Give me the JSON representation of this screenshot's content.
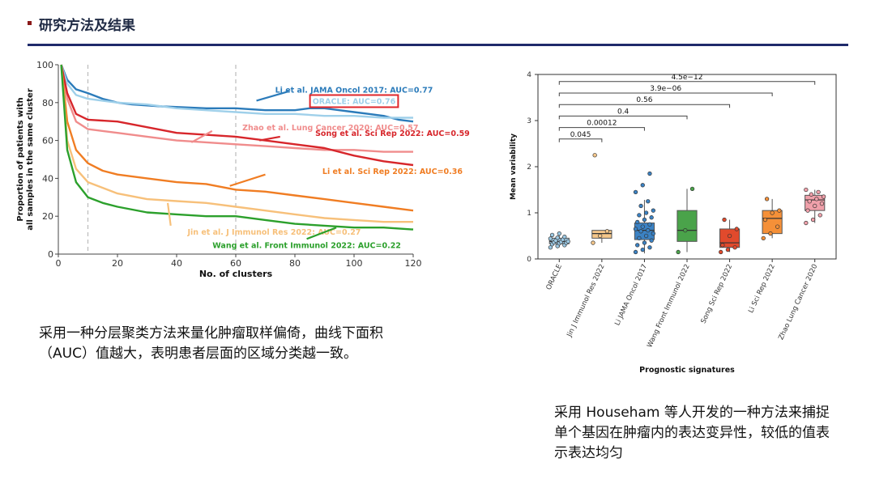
{
  "header": {
    "title": "研究方法及结果"
  },
  "captions": {
    "left": "采用一种分层聚类方法来量化肿瘤取样偏倚，曲线下面积（AUC）值越大，表明患者层面的区域分类越一致。",
    "right": "采用 Househam 等人开发的一种方法来捕捉单个基因在肿瘤内的表达变异性，较低的值表示表达均匀"
  },
  "chart_data": [
    {
      "type": "line",
      "xlabel": "No. of clusters",
      "ylabel": "Proportion of patients with all samples in the same cluster",
      "xlim": [
        0,
        120
      ],
      "ylim": [
        0,
        100
      ],
      "x_ticks": [
        "0",
        "20",
        "40",
        "60",
        "80",
        "100",
        "120"
      ],
      "y_ticks": [
        "0",
        "20",
        "40",
        "60",
        "80",
        "100"
      ],
      "vlines": [
        10,
        60
      ],
      "series": [
        {
          "name": "Li et al. JAMA Oncol 2017: AUC=0.77",
          "color": "#2b7bba",
          "points": [
            [
              1,
              100
            ],
            [
              3,
              92
            ],
            [
              6,
              87
            ],
            [
              10,
              85
            ],
            [
              15,
              82
            ],
            [
              20,
              80
            ],
            [
              25,
              79
            ],
            [
              35,
              78
            ],
            [
              50,
              77
            ],
            [
              60,
              77
            ],
            [
              70,
              76
            ],
            [
              80,
              76
            ],
            [
              85,
              77
            ],
            [
              90,
              77
            ],
            [
              95,
              76
            ],
            [
              100,
              75
            ],
            [
              105,
              74
            ],
            [
              110,
              73
            ],
            [
              115,
              71
            ],
            [
              120,
              70
            ]
          ]
        },
        {
          "name": "ORACLE: AUC=0.76",
          "color": "#9fd0ea",
          "points": [
            [
              1,
              100
            ],
            [
              3,
              90
            ],
            [
              6,
              84
            ],
            [
              10,
              82
            ],
            [
              20,
              80
            ],
            [
              30,
              79
            ],
            [
              40,
              77
            ],
            [
              50,
              76
            ],
            [
              60,
              75
            ],
            [
              70,
              74
            ],
            [
              80,
              74
            ],
            [
              90,
              73
            ],
            [
              100,
              73
            ],
            [
              110,
              72
            ],
            [
              120,
              72
            ]
          ]
        },
        {
          "name": "Zhao et al. Lung Cancer 2020: AUC=0.57",
          "color": "#f08c8c",
          "points": [
            [
              1,
              100
            ],
            [
              3,
              82
            ],
            [
              6,
              70
            ],
            [
              10,
              66
            ],
            [
              20,
              64
            ],
            [
              30,
              62
            ],
            [
              40,
              60
            ],
            [
              50,
              59
            ],
            [
              60,
              58
            ],
            [
              70,
              57
            ],
            [
              80,
              56
            ],
            [
              90,
              55
            ],
            [
              100,
              55
            ],
            [
              110,
              54
            ],
            [
              120,
              54
            ]
          ]
        },
        {
          "name": "Song et al. Sci Rep 2022: AUC=0.59",
          "color": "#d7262b",
          "points": [
            [
              1,
              100
            ],
            [
              3,
              85
            ],
            [
              6,
              74
            ],
            [
              10,
              71
            ],
            [
              20,
              70
            ],
            [
              30,
              67
            ],
            [
              40,
              64
            ],
            [
              50,
              63
            ],
            [
              60,
              62
            ],
            [
              70,
              60
            ],
            [
              80,
              58
            ],
            [
              90,
              56
            ],
            [
              100,
              52
            ],
            [
              110,
              49
            ],
            [
              120,
              47
            ]
          ]
        },
        {
          "name": "Li et al. Sci Rep 2022: AUC=0.36",
          "color": "#f07d23",
          "points": [
            [
              1,
              100
            ],
            [
              3,
              70
            ],
            [
              6,
              55
            ],
            [
              10,
              48
            ],
            [
              15,
              44
            ],
            [
              20,
              42
            ],
            [
              30,
              40
            ],
            [
              40,
              38
            ],
            [
              50,
              37
            ],
            [
              60,
              34
            ],
            [
              70,
              33
            ],
            [
              80,
              31
            ],
            [
              90,
              29
            ],
            [
              100,
              27
            ],
            [
              110,
              25
            ],
            [
              120,
              23
            ]
          ]
        },
        {
          "name": "Jin et al. J Immunol Res 2022: AUC=0.27",
          "color": "#f7c07a",
          "points": [
            [
              1,
              100
            ],
            [
              3,
              60
            ],
            [
              6,
              45
            ],
            [
              10,
              38
            ],
            [
              15,
              35
            ],
            [
              20,
              32
            ],
            [
              30,
              29
            ],
            [
              40,
              28
            ],
            [
              50,
              27
            ],
            [
              60,
              25
            ],
            [
              70,
              23
            ],
            [
              80,
              21
            ],
            [
              90,
              19
            ],
            [
              100,
              18
            ],
            [
              110,
              17
            ],
            [
              120,
              17
            ]
          ]
        },
        {
          "name": "Wang et al. Front Immunol 2022: AUC=0.22",
          "color": "#2ca02c",
          "points": [
            [
              1,
              100
            ],
            [
              3,
              55
            ],
            [
              6,
              38
            ],
            [
              10,
              30
            ],
            [
              15,
              27
            ],
            [
              20,
              25
            ],
            [
              30,
              22
            ],
            [
              40,
              21
            ],
            [
              50,
              20
            ],
            [
              60,
              20
            ],
            [
              70,
              18
            ],
            [
              80,
              16
            ],
            [
              90,
              15
            ],
            [
              100,
              14
            ],
            [
              110,
              14
            ],
            [
              120,
              13
            ]
          ]
        }
      ],
      "annotations": [
        {
          "text": "Li et al. JAMA Oncol 2017: AUC=0.77",
          "color": "#2b7bba",
          "x": 100,
          "y": 87,
          "ax": 67,
          "ay": 81,
          "bx": 78,
          "by": 86
        },
        {
          "text": "ORACLE: AUC=0.76",
          "color": "#9fd0ea",
          "x": 100,
          "y": 81,
          "boxed": true
        },
        {
          "text": "Zhao et al. Lung Cancer 2020: AUC=0.57",
          "color": "#f08c8c",
          "x": 92,
          "y": 67,
          "ax": 45,
          "ay": 59,
          "bx": 52,
          "by": 65
        },
        {
          "text": "Song et al. Sci Rep 2022: AUC=0.59",
          "color": "#d7262b",
          "x": 113,
          "y": 64,
          "ax": 68,
          "ay": 60,
          "bx": 75,
          "by": 62
        },
        {
          "text": "Li et al. Sci Rep 2022: AUC=0.36",
          "color": "#f07d23",
          "x": 113,
          "y": 44,
          "ax": 58,
          "ay": 36,
          "bx": 70,
          "by": 42
        },
        {
          "text": "Jin et al. J Immunol Res 2022: AUC=0.27",
          "color": "#f7c07a",
          "x": 73,
          "y": 12,
          "ax": 37,
          "ay": 27,
          "bx": 38,
          "by": 15
        },
        {
          "text": "Wang et al. Front Immunol 2022: AUC=0.22",
          "color": "#2ca02c",
          "x": 84,
          "y": 5,
          "ax": 94,
          "ay": 14,
          "bx": 84,
          "by": 8
        }
      ]
    },
    {
      "type": "box",
      "xlabel": "Prognostic signatures",
      "ylabel": "Mean variability",
      "ylim": [
        0,
        4
      ],
      "y_ticks": [
        "0",
        "1",
        "2",
        "3",
        "4"
      ],
      "categories": [
        "ORACLE",
        "Jin J Immunol Res 2022",
        "Li JAMA Oncol 2017",
        "Wang Front Immunol 2022",
        "Song Sci Rep 2022",
        "Li Sci Rep 2022",
        "Zhao Lung Cancer 2020"
      ],
      "colors": [
        "#9cc9e4",
        "#f5c78a",
        "#3b82c4",
        "#4aa34a",
        "#e14a2c",
        "#f59038",
        "#f0a0aa"
      ],
      "boxes": [
        {
          "q1": 0.33,
          "median": 0.38,
          "q3": 0.45,
          "lo": 0.25,
          "hi": 0.55,
          "points": [
            0.25,
            0.28,
            0.3,
            0.32,
            0.34,
            0.35,
            0.36,
            0.37,
            0.38,
            0.4,
            0.42,
            0.44,
            0.46,
            0.48,
            0.52,
            0.55
          ]
        },
        {
          "q1": 0.45,
          "median": 0.55,
          "q3": 0.62,
          "lo": 0.35,
          "hi": 0.62,
          "points": [
            0.35,
            0.5,
            0.6,
            2.25
          ]
        },
        {
          "q1": 0.42,
          "median": 0.62,
          "q3": 0.78,
          "lo": 0.12,
          "hi": 1.28,
          "points": [
            0.15,
            0.2,
            0.25,
            0.3,
            0.35,
            0.4,
            0.45,
            0.5,
            0.55,
            0.6,
            0.62,
            0.65,
            0.7,
            0.75,
            0.8,
            0.85,
            0.9,
            0.95,
            1.0,
            1.05,
            1.15,
            1.25,
            1.45,
            1.6,
            1.85
          ]
        },
        {
          "q1": 0.38,
          "median": 0.62,
          "q3": 1.05,
          "lo": 0.15,
          "hi": 1.52,
          "points": [
            0.15,
            0.62,
            1.52
          ]
        },
        {
          "q1": 0.25,
          "median": 0.35,
          "q3": 0.65,
          "lo": 0.15,
          "hi": 0.85,
          "points": [
            0.15,
            0.2,
            0.25,
            0.3,
            0.5,
            0.65,
            0.85
          ]
        },
        {
          "q1": 0.55,
          "median": 0.88,
          "q3": 1.05,
          "lo": 0.45,
          "hi": 1.3,
          "points": [
            0.45,
            0.55,
            0.7,
            0.85,
            1.0,
            1.05,
            1.3
          ]
        },
        {
          "q1": 1.05,
          "median": 1.28,
          "q3": 1.38,
          "lo": 0.78,
          "hi": 1.5,
          "points": [
            0.78,
            0.85,
            0.95,
            1.05,
            1.15,
            1.2,
            1.25,
            1.3,
            1.35,
            1.4,
            1.45,
            1.5
          ]
        }
      ],
      "comparisons": [
        {
          "from": 0,
          "to": 1,
          "label": "0.045"
        },
        {
          "from": 0,
          "to": 2,
          "label": "0.00012"
        },
        {
          "from": 0,
          "to": 3,
          "label": "0.4"
        },
        {
          "from": 0,
          "to": 4,
          "label": "0.56"
        },
        {
          "from": 0,
          "to": 5,
          "label": "3.9e−06"
        },
        {
          "from": 0,
          "to": 6,
          "label": "4.5e−12"
        }
      ]
    }
  ]
}
